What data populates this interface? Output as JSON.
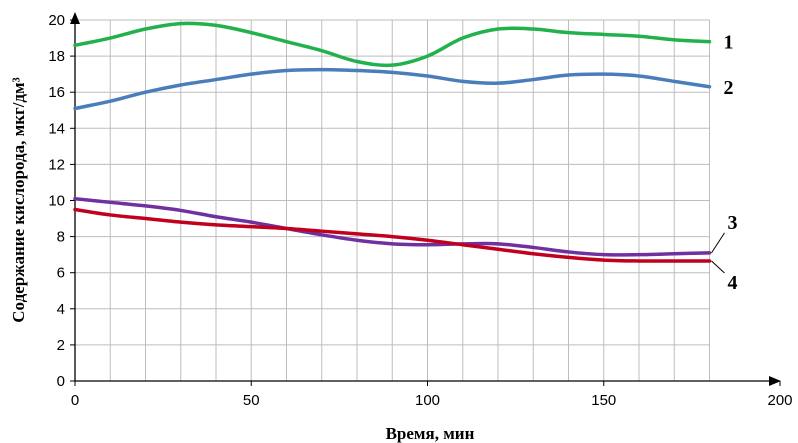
{
  "chart_data": {
    "type": "line",
    "xlabel": "Время, мин",
    "ylabel": "Содержание кислорода, мкг/дм³",
    "xlim": [
      0,
      200
    ],
    "ylim": [
      0,
      20
    ],
    "xticks": [
      0,
      50,
      100,
      150,
      200
    ],
    "yticks": [
      0,
      2,
      4,
      6,
      8,
      10,
      12,
      14,
      16,
      18,
      20
    ],
    "grid": true,
    "legend": "labels at line ends (right)",
    "series": [
      {
        "name": "1",
        "color": "#22b14c",
        "x": [
          0,
          10,
          20,
          30,
          40,
          50,
          60,
          70,
          80,
          90,
          100,
          110,
          120,
          130,
          140,
          150,
          160,
          170,
          180
        ],
        "y": [
          18.6,
          19.0,
          19.5,
          19.8,
          19.7,
          19.3,
          18.8,
          18.3,
          17.7,
          17.5,
          18.0,
          19.0,
          19.5,
          19.5,
          19.3,
          19.2,
          19.1,
          18.9,
          18.8
        ]
      },
      {
        "name": "2",
        "color": "#4a7ebb",
        "x": [
          0,
          10,
          20,
          30,
          40,
          50,
          60,
          70,
          80,
          90,
          100,
          110,
          120,
          130,
          140,
          150,
          160,
          170,
          180
        ],
        "y": [
          15.1,
          15.5,
          16.0,
          16.4,
          16.7,
          17.0,
          17.2,
          17.25,
          17.2,
          17.1,
          16.9,
          16.6,
          16.5,
          16.7,
          16.95,
          17.0,
          16.9,
          16.6,
          16.3
        ]
      },
      {
        "name": "3",
        "color": "#7030a0",
        "x": [
          0,
          10,
          20,
          30,
          40,
          50,
          60,
          70,
          80,
          90,
          100,
          110,
          120,
          130,
          140,
          150,
          160,
          170,
          180
        ],
        "y": [
          10.1,
          9.9,
          9.7,
          9.45,
          9.1,
          8.8,
          8.45,
          8.1,
          7.8,
          7.6,
          7.55,
          7.6,
          7.6,
          7.4,
          7.15,
          7.0,
          7.0,
          7.05,
          7.1
        ]
      },
      {
        "name": "4",
        "color": "#c0001d",
        "x": [
          0,
          10,
          20,
          30,
          40,
          50,
          60,
          70,
          80,
          90,
          100,
          110,
          120,
          130,
          140,
          150,
          160,
          170,
          180
        ],
        "y": [
          9.5,
          9.2,
          9.0,
          8.8,
          8.65,
          8.55,
          8.45,
          8.3,
          8.15,
          8.0,
          7.8,
          7.55,
          7.3,
          7.05,
          6.85,
          6.7,
          6.65,
          6.65,
          6.65
        ]
      }
    ]
  }
}
